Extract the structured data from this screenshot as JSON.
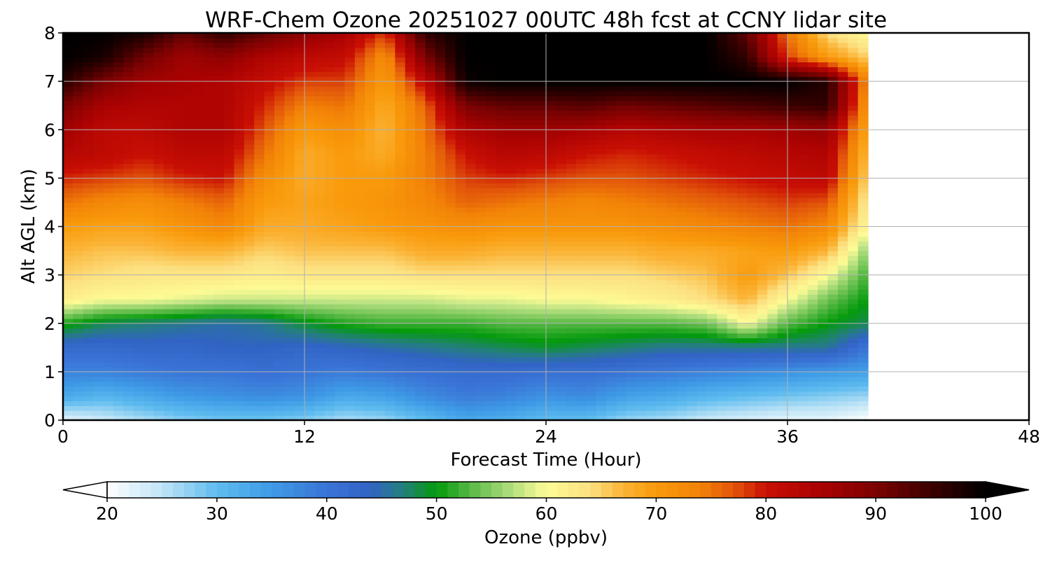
{
  "chart_data": {
    "type": "heatmap",
    "title": "WRF-Chem Ozone  20251027 00UTC 48h fcst at CCNY lidar site",
    "xlabel": "Forecast Time (Hour)",
    "ylabel": "Alt AGL (km)",
    "xlim": [
      0,
      48
    ],
    "ylim": [
      0,
      8
    ],
    "x_ticks": [
      0,
      12,
      24,
      36,
      48
    ],
    "y_ticks": [
      0,
      1,
      2,
      3,
      4,
      5,
      6,
      7,
      8
    ],
    "grid": true,
    "data_end_hour": 40,
    "x": [
      0,
      2,
      4,
      6,
      8,
      10,
      12,
      14,
      16,
      18,
      20,
      22,
      24,
      26,
      28,
      30,
      32,
      34,
      36,
      38,
      40
    ],
    "y": [
      0,
      0.5,
      1,
      1.5,
      2,
      2.5,
      3,
      3.5,
      4,
      4.5,
      5,
      5.5,
      6,
      6.5,
      7,
      7.5,
      8
    ],
    "z": [
      [
        22,
        24,
        26,
        28,
        29,
        29,
        28,
        26,
        27,
        30,
        33,
        32,
        30,
        30,
        27,
        26,
        24,
        23,
        22,
        22,
        20
      ],
      [
        33,
        31,
        33,
        35,
        36,
        37,
        36,
        33,
        34,
        37,
        39,
        38,
        36,
        37,
        34,
        33,
        31,
        30,
        29,
        28,
        27
      ],
      [
        38,
        38,
        39,
        40,
        40,
        41,
        40,
        39,
        40,
        41,
        42,
        42,
        41,
        41,
        40,
        39,
        38,
        37,
        36,
        35,
        34
      ],
      [
        42,
        42,
        43,
        43,
        44,
        44,
        43,
        44,
        45,
        46,
        47,
        48,
        49,
        48,
        47,
        46,
        46,
        46,
        46,
        46,
        40
      ],
      [
        51,
        48,
        47,
        46,
        45,
        46,
        49,
        51,
        52,
        52,
        52,
        53,
        53,
        53,
        53,
        53,
        54,
        60,
        53,
        50,
        48
      ],
      [
        62,
        60,
        60,
        59,
        58,
        58,
        58,
        58,
        58,
        58,
        59,
        59,
        60,
        60,
        61,
        62,
        64,
        67,
        60,
        54,
        50
      ],
      [
        65,
        64,
        63,
        63,
        63,
        62,
        63,
        63,
        63,
        64,
        64,
        64,
        64,
        64,
        64,
        65,
        66,
        70,
        66,
        60,
        52
      ],
      [
        67,
        66,
        66,
        67,
        67,
        65,
        66,
        66,
        66,
        68,
        68,
        67,
        67,
        67,
        67,
        68,
        68,
        69,
        70,
        67,
        55
      ],
      [
        70,
        69,
        69,
        71,
        73,
        68,
        68,
        69,
        70,
        71,
        72,
        71,
        71,
        71,
        71,
        72,
        73,
        74,
        75,
        73,
        60
      ],
      [
        75,
        73,
        72,
        74,
        76,
        70,
        69,
        70,
        71,
        73,
        76,
        75,
        74,
        73,
        74,
        75,
        76,
        77,
        78,
        77,
        62
      ],
      [
        79,
        78,
        77,
        79,
        80,
        72,
        68,
        70,
        70,
        74,
        78,
        79,
        78,
        77,
        77,
        78,
        79,
        80,
        81,
        82,
        64
      ],
      [
        83,
        82,
        80,
        82,
        82,
        75,
        68,
        70,
        68,
        74,
        80,
        83,
        82,
        80,
        79,
        80,
        81,
        82,
        83,
        84,
        66
      ],
      [
        86,
        82,
        82,
        84,
        84,
        77,
        70,
        72,
        67,
        75,
        84,
        86,
        86,
        85,
        83,
        84,
        85,
        85,
        86,
        87,
        68
      ],
      [
        90,
        85,
        84,
        84,
        84,
        79,
        74,
        75,
        68,
        76,
        90,
        92,
        92,
        93,
        91,
        92,
        93,
        94,
        95,
        96,
        70
      ],
      [
        97,
        90,
        86,
        85,
        84,
        81,
        78,
        78,
        70,
        82,
        99,
        100,
        100,
        100,
        100,
        100,
        100,
        100,
        100,
        97,
        72
      ],
      [
        100,
        98,
        91,
        86,
        88,
        84,
        82,
        81,
        72,
        90,
        100,
        100,
        100,
        100,
        100,
        100,
        100,
        96,
        78,
        70,
        65
      ],
      [
        100,
        100,
        98,
        92,
        96,
        92,
        88,
        85,
        78,
        96,
        100,
        100,
        100,
        100,
        100,
        100,
        100,
        92,
        75,
        64,
        60
      ]
    ],
    "colorbar": {
      "label": "Ozone  (ppbv)",
      "min": 20,
      "max": 100,
      "ticks": [
        20,
        30,
        40,
        50,
        60,
        70,
        80,
        90,
        100
      ],
      "extend": "both",
      "stops": [
        {
          "v": 20,
          "c": "#ffffff"
        },
        {
          "v": 25,
          "c": "#bfe4f6"
        },
        {
          "v": 30,
          "c": "#5fbcef"
        },
        {
          "v": 35,
          "c": "#3e9ae6"
        },
        {
          "v": 40,
          "c": "#3a74d6"
        },
        {
          "v": 44,
          "c": "#3163c4"
        },
        {
          "v": 47,
          "c": "#23807a"
        },
        {
          "v": 50,
          "c": "#049a0c"
        },
        {
          "v": 53,
          "c": "#56b844"
        },
        {
          "v": 57,
          "c": "#b6e081"
        },
        {
          "v": 60,
          "c": "#fdfb95"
        },
        {
          "v": 64,
          "c": "#fce081"
        },
        {
          "v": 67,
          "c": "#fbb335"
        },
        {
          "v": 70,
          "c": "#f99a0b"
        },
        {
          "v": 74,
          "c": "#f28207"
        },
        {
          "v": 77,
          "c": "#e2560a"
        },
        {
          "v": 80,
          "c": "#c90f04"
        },
        {
          "v": 85,
          "c": "#a90202"
        },
        {
          "v": 90,
          "c": "#7c0202"
        },
        {
          "v": 95,
          "c": "#3c0000"
        },
        {
          "v": 100,
          "c": "#000000"
        }
      ]
    }
  }
}
